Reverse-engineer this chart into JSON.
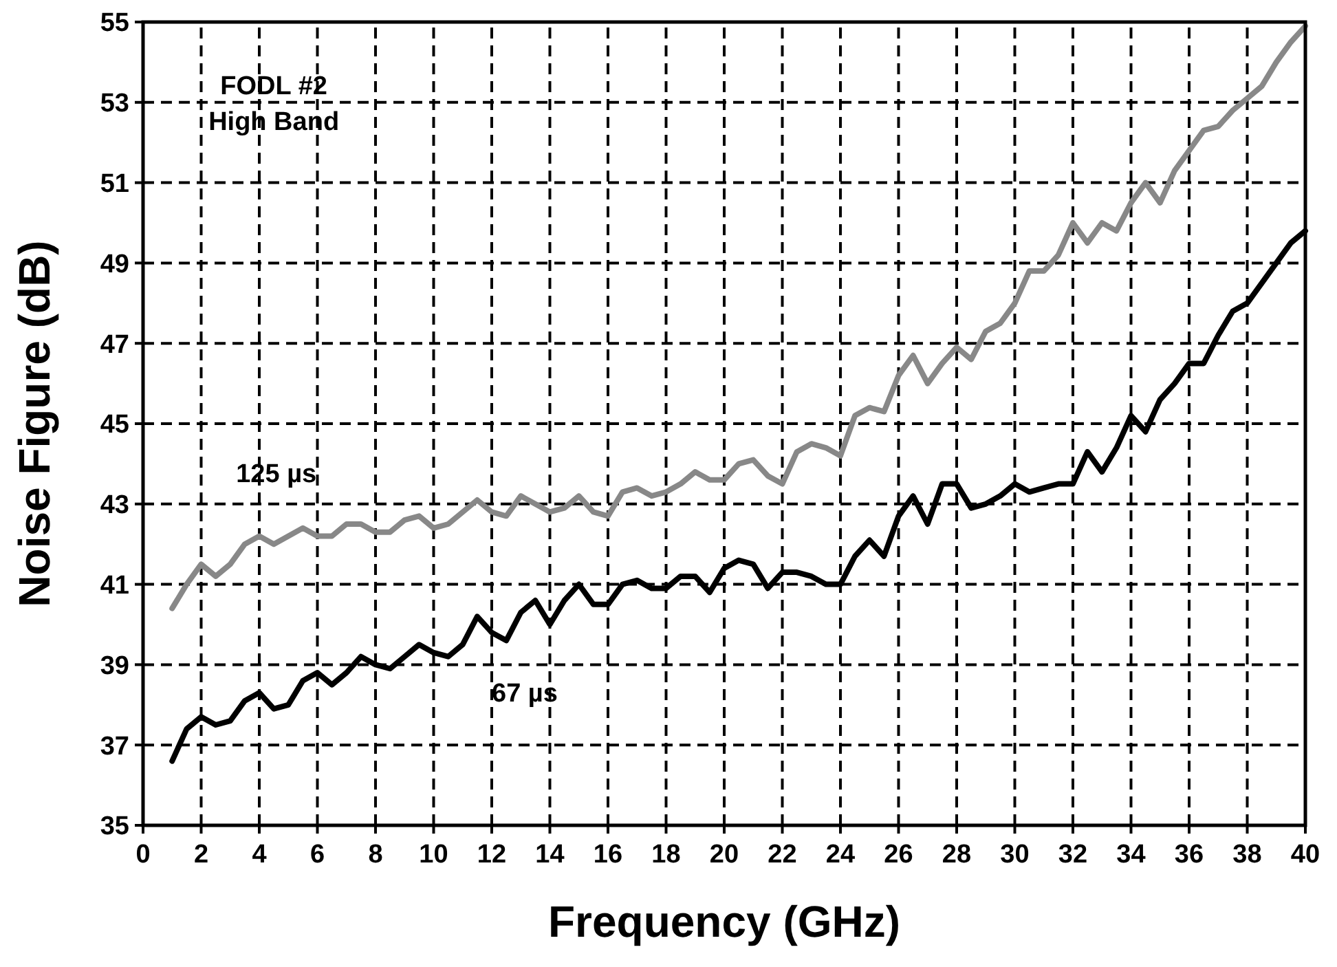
{
  "chart_data": {
    "type": "line",
    "xlabel": "Frequency (GHz)",
    "ylabel": "Noise Figure (dB)",
    "annotations": [
      "FODL #2\nHigh Band"
    ],
    "x": [
      1,
      1.5,
      2,
      2.5,
      3,
      3.5,
      4,
      4.5,
      5,
      5.5,
      6,
      6.5,
      7,
      7.5,
      8,
      8.5,
      9,
      9.5,
      10,
      10.5,
      11,
      11.5,
      12,
      12.5,
      13,
      13.5,
      14,
      14.5,
      15,
      15.5,
      16,
      16.5,
      17,
      17.5,
      18,
      18.5,
      19,
      19.5,
      20,
      20.5,
      21,
      21.5,
      22,
      22.5,
      23,
      23.5,
      24,
      24.5,
      25,
      25.5,
      26,
      26.5,
      27,
      27.5,
      28,
      28.5,
      29,
      29.5,
      30,
      30.5,
      31,
      31.5,
      32,
      32.5,
      33,
      33.5,
      34,
      34.5,
      35,
      35.5,
      36,
      36.5,
      37,
      37.5,
      38,
      38.5,
      39,
      39.5,
      40
    ],
    "series": [
      {
        "name": "125 µs",
        "color": "#888888",
        "values": [
          40.4,
          41.0,
          41.5,
          41.2,
          41.5,
          42.0,
          42.2,
          42.0,
          42.2,
          42.4,
          42.2,
          42.2,
          42.5,
          42.5,
          42.3,
          42.3,
          42.6,
          42.7,
          42.4,
          42.5,
          42.8,
          43.1,
          42.8,
          42.7,
          43.2,
          43.0,
          42.8,
          42.9,
          43.2,
          42.8,
          42.7,
          43.3,
          43.4,
          43.2,
          43.3,
          43.5,
          43.8,
          43.6,
          43.6,
          44.0,
          44.1,
          43.7,
          43.5,
          44.3,
          44.5,
          44.4,
          44.2,
          45.2,
          45.4,
          45.3,
          46.2,
          46.7,
          46.0,
          46.5,
          46.9,
          46.6,
          47.3,
          47.5,
          48.0,
          48.8,
          48.8,
          49.2,
          50.0,
          49.5,
          50.0,
          49.8,
          50.5,
          51.0,
          50.5,
          51.3,
          51.8,
          52.3,
          52.4,
          52.8,
          53.1,
          53.4,
          54.0,
          54.5,
          54.9
        ]
      },
      {
        "name": "67 µs",
        "color": "#000000",
        "values": [
          36.6,
          37.4,
          37.7,
          37.5,
          37.6,
          38.1,
          38.3,
          37.9,
          38.0,
          38.6,
          38.8,
          38.5,
          38.8,
          39.2,
          39.0,
          38.9,
          39.2,
          39.5,
          39.3,
          39.2,
          39.5,
          40.2,
          39.8,
          39.6,
          40.3,
          40.6,
          40.0,
          40.6,
          41.0,
          40.5,
          40.5,
          41.0,
          41.1,
          40.9,
          40.9,
          41.2,
          41.2,
          40.8,
          41.4,
          41.6,
          41.5,
          40.9,
          41.3,
          41.3,
          41.2,
          41.0,
          41.0,
          41.7,
          42.1,
          41.7,
          42.7,
          43.2,
          42.5,
          43.5,
          43.5,
          42.9,
          43.0,
          43.2,
          43.5,
          43.3,
          43.4,
          43.5,
          43.5,
          44.3,
          43.8,
          44.4,
          45.2,
          44.8,
          45.6,
          46.0,
          46.5,
          46.5,
          47.2,
          47.8,
          48.0,
          48.5,
          49.0,
          49.5,
          49.8
        ]
      }
    ],
    "xlim": [
      0,
      40
    ],
    "xticks": [
      0,
      2,
      4,
      6,
      8,
      10,
      12,
      14,
      16,
      18,
      20,
      22,
      24,
      26,
      28,
      30,
      32,
      34,
      36,
      38,
      40
    ],
    "ylim": [
      35,
      55
    ],
    "yticks": [
      35,
      37,
      39,
      41,
      43,
      45,
      47,
      49,
      51,
      53,
      55
    ],
    "grid": true,
    "marker": "none",
    "line_style": "solid"
  }
}
